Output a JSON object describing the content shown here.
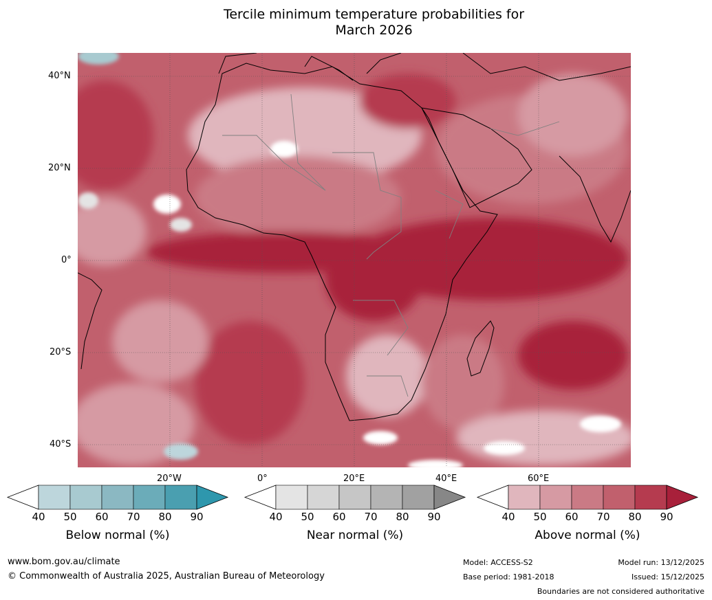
{
  "title_line1": "Tercile minimum temperature probabilities for",
  "title_line2": "March 2026",
  "latitude_labels": [
    "40°N",
    "20°N",
    "0°",
    "20°S",
    "40°S"
  ],
  "longitude_labels": [
    "20°W",
    "0°",
    "20°E",
    "40°E",
    "60°E"
  ],
  "colorbars": [
    {
      "name": "Below normal (%)",
      "ticks": [
        "40",
        "50",
        "60",
        "70",
        "80",
        "90"
      ],
      "colors": [
        "#ffffff",
        "#bdd6dc",
        "#a8cad0",
        "#8bb8c2",
        "#6bacb9",
        "#4a9fb0",
        "#2e97ad"
      ]
    },
    {
      "name": "Near normal (%)",
      "ticks": [
        "40",
        "50",
        "60",
        "70",
        "80",
        "90"
      ],
      "colors": [
        "#ffffff",
        "#e4e4e4",
        "#d6d6d6",
        "#c6c6c6",
        "#b4b4b4",
        "#a1a1a1",
        "#878787"
      ]
    },
    {
      "name": "Above normal (%)",
      "ticks": [
        "40",
        "50",
        "60",
        "70",
        "80",
        "90"
      ],
      "colors": [
        "#ffffff",
        "#e0b6bd",
        "#d69aa3",
        "#ca7a85",
        "#c1606d",
        "#b53b4f",
        "#a8203a"
      ]
    }
  ],
  "footer": {
    "website": "www.bom.gov.au/climate",
    "copyright": "© Commonwealth of Australia 2025, Australian Bureau of Meteorology",
    "model": "Model: ACCESS-S2",
    "base_period": "Base period: 1981-2018",
    "model_run": "Model run: 13/12/2025",
    "issued": "Issued: 15/12/2025",
    "disclaimer": "Boundaries are not considered authoritative"
  }
}
